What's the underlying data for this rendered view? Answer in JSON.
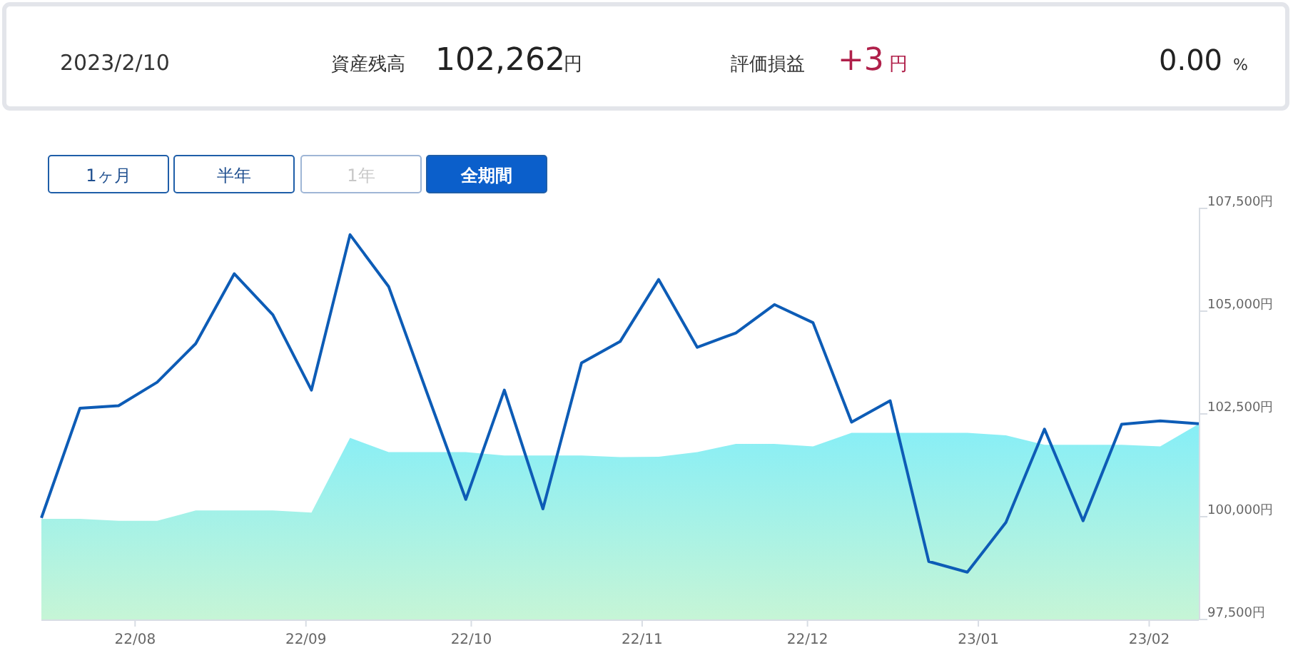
{
  "chart_data": [
    {
      "type": "other",
      "annotations": [
        "2023/2/10",
        "資産残高",
        "102,262",
        "円",
        "評価損益",
        "+3",
        "円",
        "0.00",
        "%"
      ]
    },
    {
      "type": "line",
      "annotations": [
        "1ヶ月",
        "半年",
        "1年",
        "全期間"
      ],
      "x": [
        "2022-07-15",
        "2022-07-22",
        "2022-07-29",
        "2022-08-05",
        "2022-08-12",
        "2022-08-19",
        "2022-08-26",
        "2022-09-02",
        "2022-09-09",
        "2022-09-16",
        "2022-09-23",
        "2022-09-30",
        "2022-10-07",
        "2022-10-14",
        "2022-10-21",
        "2022-10-28",
        "2022-11-04",
        "2022-11-11",
        "2022-11-18",
        "2022-11-25",
        "2022-12-02",
        "2022-12-09",
        "2022-12-16",
        "2022-12-23",
        "2022-12-30",
        "2023-01-06",
        "2023-01-13",
        "2023-01-20",
        "2023-01-27",
        "2023-02-03",
        "2023-02-10"
      ],
      "series": [
        {
          "type": "area",
          "color": "#86eef7",
          "values": [
            99950,
            99950,
            99900,
            99900,
            100150,
            100150,
            100150,
            100100,
            101920,
            101570,
            101570,
            101570,
            101490,
            101490,
            101490,
            101450,
            101460,
            101570,
            101770,
            101770,
            101710,
            102040,
            102040,
            102040,
            102040,
            101980,
            101750,
            101750,
            101750,
            101710,
            102259
          ]
        },
        {
          "type": "line",
          "color": "#0d5cb6",
          "values": [
            99970,
            102640,
            102700,
            103270,
            104210,
            105910,
            104910,
            103080,
            106860,
            105600,
            103000,
            100420,
            103080,
            100190,
            103740,
            104260,
            105770,
            104120,
            104470,
            105160,
            104720,
            102300,
            102820,
            98910,
            98650,
            99860,
            102130,
            99900,
            102250,
            102330,
            102262
          ]
        }
      ],
      "xlim": [
        "2022-07-15",
        "2023-02-10"
      ],
      "xticks": [
        {
          "value": "2022-08-01",
          "label": "22/08"
        },
        {
          "value": "2022-09-01",
          "label": "22/09"
        },
        {
          "value": "2022-10-01",
          "label": "22/10"
        },
        {
          "value": "2022-11-01",
          "label": "22/11"
        },
        {
          "value": "2022-12-01",
          "label": "22/12"
        },
        {
          "value": "2023-01-01",
          "label": "23/01"
        },
        {
          "value": "2023-02-01",
          "label": "23/02"
        }
      ],
      "ylim": [
        97500,
        107500
      ],
      "yticks": [
        {
          "value": 97500,
          "label": "97,500円"
        },
        {
          "value": 100000,
          "label": "100,000円"
        },
        {
          "value": 102500,
          "label": "102,500円"
        },
        {
          "value": 105000,
          "label": "105,000円"
        },
        {
          "value": 107500,
          "label": "107,500円"
        }
      ]
    }
  ]
}
